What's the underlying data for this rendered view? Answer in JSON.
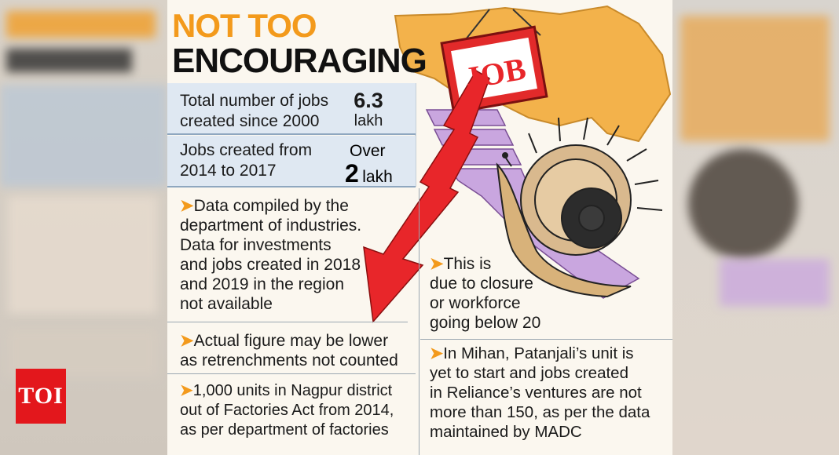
{
  "title": {
    "line1": "NOT TOO",
    "line2": "ENCOURAGING"
  },
  "illustration": {
    "sign_text": "JOB"
  },
  "stats": [
    {
      "label_line1": "Total number of jobs",
      "label_line2": "created since 2000",
      "value": "6.3",
      "unit": "lakh"
    },
    {
      "label_line1": "Jobs created from",
      "label_line2": "2014 to 2017",
      "prefix": "Over",
      "value": "2",
      "unit": "lakh"
    }
  ],
  "notes_left": [
    {
      "lines": [
        "Data compiled by the",
        "department of industries.",
        "Data for investments",
        "and jobs created in 2018",
        "and 2019 in the region",
        "not available"
      ]
    },
    {
      "lines": [
        "Actual figure may be lower",
        "as retrenchments not counted"
      ]
    },
    {
      "lines": [
        "1,000 units in Nagpur district",
        "out of Factories Act from 2014,",
        "as per department of factories"
      ]
    }
  ],
  "notes_right": [
    {
      "lines": [
        "This is",
        "due to closure",
        "or workforce",
        "going below 20"
      ]
    },
    {
      "lines": [
        "In Mihan, Patanjali’s unit is",
        "yet to start and jobs created",
        "in Reliance’s ventures are not",
        "more than 150, as per the data",
        "maintained by MADC"
      ]
    }
  ],
  "badge": {
    "text": "TOI"
  },
  "colors": {
    "accent_orange": "#f39a1c",
    "title_black": "#111111",
    "arrow_red": "#e8262a",
    "stat_bg": "#dfe8f2",
    "stair_purple": "#c9a6df",
    "badge_red": "#e3171c"
  }
}
